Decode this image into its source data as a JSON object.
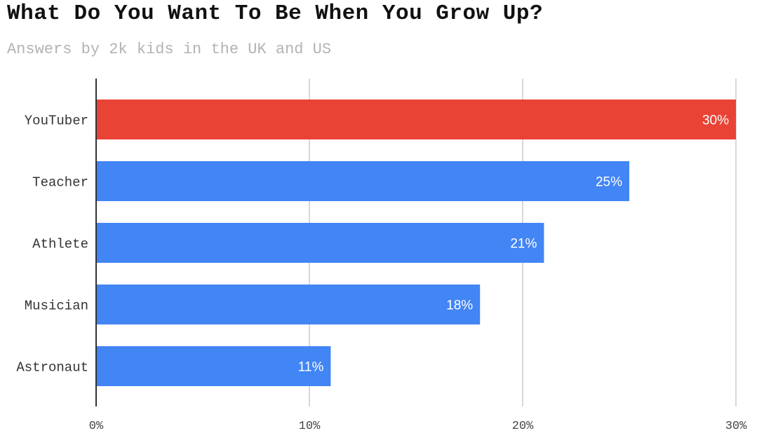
{
  "chart_data": {
    "type": "bar",
    "orientation": "horizontal",
    "title": "What Do You Want To Be When You Grow Up?",
    "subtitle": "Answers by 2k kids in the UK and US",
    "categories": [
      "YouTuber",
      "Teacher",
      "Athlete",
      "Musician",
      "Astronaut"
    ],
    "values": [
      30,
      25,
      21,
      18,
      11
    ],
    "data_labels": [
      "30%",
      "25%",
      "21%",
      "18%",
      "11%"
    ],
    "bar_colors": [
      "#e94335",
      "#4285f4",
      "#4285f4",
      "#4285f4",
      "#4285f4"
    ],
    "xlim": [
      0,
      30
    ],
    "xticks": [
      0,
      10,
      20,
      30
    ],
    "xtick_labels": [
      "0%",
      "10%",
      "20%",
      "30%"
    ],
    "grid": true,
    "legend": "none"
  }
}
